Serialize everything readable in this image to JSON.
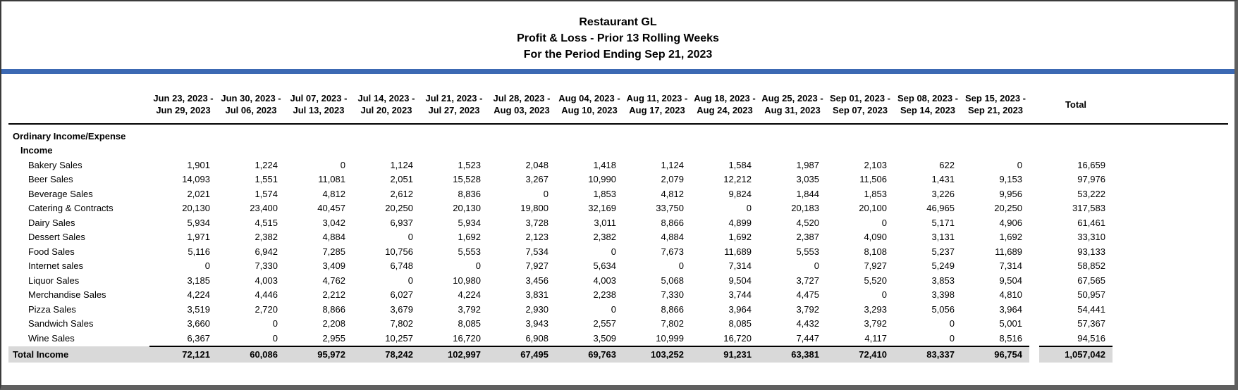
{
  "report": {
    "title": "Restaurant GL",
    "subtitle": "Profit & Loss - Prior 13 Rolling Weeks",
    "period": "For the Period Ending Sep 21, 2023"
  },
  "colors": {
    "accent_bar": "#3C69B3",
    "total_row_bg": "#D9D9D9"
  },
  "table": {
    "week_columns": [
      [
        "Jun 23, 2023 -",
        "Jun 29, 2023"
      ],
      [
        "Jun 30, 2023 -",
        "Jul 06, 2023"
      ],
      [
        "Jul 07, 2023 -",
        "Jul 13, 2023"
      ],
      [
        "Jul 14, 2023 -",
        "Jul 20, 2023"
      ],
      [
        "Jul 21, 2023 -",
        "Jul 27, 2023"
      ],
      [
        "Jul 28, 2023 -",
        "Aug 03, 2023"
      ],
      [
        "Aug 04, 2023 -",
        "Aug 10, 2023"
      ],
      [
        "Aug 11, 2023 -",
        "Aug 17, 2023"
      ],
      [
        "Aug 18, 2023 -",
        "Aug 24, 2023"
      ],
      [
        "Aug 25, 2023 -",
        "Aug 31, 2023"
      ],
      [
        "Sep 01, 2023 -",
        "Sep 07, 2023"
      ],
      [
        "Sep 08, 2023 -",
        "Sep 14, 2023"
      ],
      [
        "Sep 15, 2023 -",
        "Sep 21, 2023"
      ]
    ],
    "total_column_label": "Total",
    "sections": [
      "Ordinary Income/Expense",
      "Income"
    ],
    "rows": [
      {
        "label": "Bakery Sales",
        "values": [
          "1,901",
          "1,224",
          "0",
          "1,124",
          "1,523",
          "2,048",
          "1,418",
          "1,124",
          "1,584",
          "1,987",
          "2,103",
          "622",
          "0",
          "16,659"
        ]
      },
      {
        "label": "Beer Sales",
        "values": [
          "14,093",
          "1,551",
          "11,081",
          "2,051",
          "15,528",
          "3,267",
          "10,990",
          "2,079",
          "12,212",
          "3,035",
          "11,506",
          "1,431",
          "9,153",
          "97,976"
        ]
      },
      {
        "label": "Beverage Sales",
        "values": [
          "2,021",
          "1,574",
          "4,812",
          "2,612",
          "8,836",
          "0",
          "1,853",
          "4,812",
          "9,824",
          "1,844",
          "1,853",
          "3,226",
          "9,956",
          "53,222"
        ]
      },
      {
        "label": "Catering & Contracts",
        "values": [
          "20,130",
          "23,400",
          "40,457",
          "20,250",
          "20,130",
          "19,800",
          "32,169",
          "33,750",
          "0",
          "20,183",
          "20,100",
          "46,965",
          "20,250",
          "317,583"
        ]
      },
      {
        "label": "Dairy Sales",
        "values": [
          "5,934",
          "4,515",
          "3,042",
          "6,937",
          "5,934",
          "3,728",
          "3,011",
          "8,866",
          "4,899",
          "4,520",
          "0",
          "5,171",
          "4,906",
          "61,461"
        ]
      },
      {
        "label": "Dessert Sales",
        "values": [
          "1,971",
          "2,382",
          "4,884",
          "0",
          "1,692",
          "2,123",
          "2,382",
          "4,884",
          "1,692",
          "2,387",
          "4,090",
          "3,131",
          "1,692",
          "33,310"
        ]
      },
      {
        "label": "Food Sales",
        "values": [
          "5,116",
          "6,942",
          "7,285",
          "10,756",
          "5,553",
          "7,534",
          "0",
          "7,673",
          "11,689",
          "5,553",
          "8,108",
          "5,237",
          "11,689",
          "93,133"
        ]
      },
      {
        "label": "Internet sales",
        "values": [
          "0",
          "7,330",
          "3,409",
          "6,748",
          "0",
          "7,927",
          "5,634",
          "0",
          "7,314",
          "0",
          "7,927",
          "5,249",
          "7,314",
          "58,852"
        ]
      },
      {
        "label": "Liquor Sales",
        "values": [
          "3,185",
          "4,003",
          "4,762",
          "0",
          "10,980",
          "3,456",
          "4,003",
          "5,068",
          "9,504",
          "3,727",
          "5,520",
          "3,853",
          "9,504",
          "67,565"
        ]
      },
      {
        "label": "Merchandise Sales",
        "values": [
          "4,224",
          "4,446",
          "2,212",
          "6,027",
          "4,224",
          "3,831",
          "2,238",
          "7,330",
          "3,744",
          "4,475",
          "0",
          "3,398",
          "4,810",
          "50,957"
        ]
      },
      {
        "label": "Pizza Sales",
        "values": [
          "3,519",
          "2,720",
          "8,866",
          "3,679",
          "3,792",
          "2,930",
          "0",
          "8,866",
          "3,964",
          "3,792",
          "3,293",
          "5,056",
          "3,964",
          "54,441"
        ]
      },
      {
        "label": "Sandwich Sales",
        "values": [
          "3,660",
          "0",
          "2,208",
          "7,802",
          "8,085",
          "3,943",
          "2,557",
          "7,802",
          "8,085",
          "4,432",
          "3,792",
          "0",
          "5,001",
          "57,367"
        ]
      },
      {
        "label": "Wine Sales",
        "values": [
          "6,367",
          "0",
          "2,955",
          "10,257",
          "16,720",
          "6,908",
          "3,509",
          "10,999",
          "16,720",
          "7,447",
          "4,117",
          "0",
          "8,516",
          "94,516"
        ]
      }
    ],
    "total_row": {
      "label": "Total Income",
      "values": [
        "72,121",
        "60,086",
        "95,972",
        "78,242",
        "102,997",
        "67,495",
        "69,763",
        "103,252",
        "91,231",
        "63,381",
        "72,410",
        "83,337",
        "96,754",
        "1,057,042"
      ]
    }
  }
}
